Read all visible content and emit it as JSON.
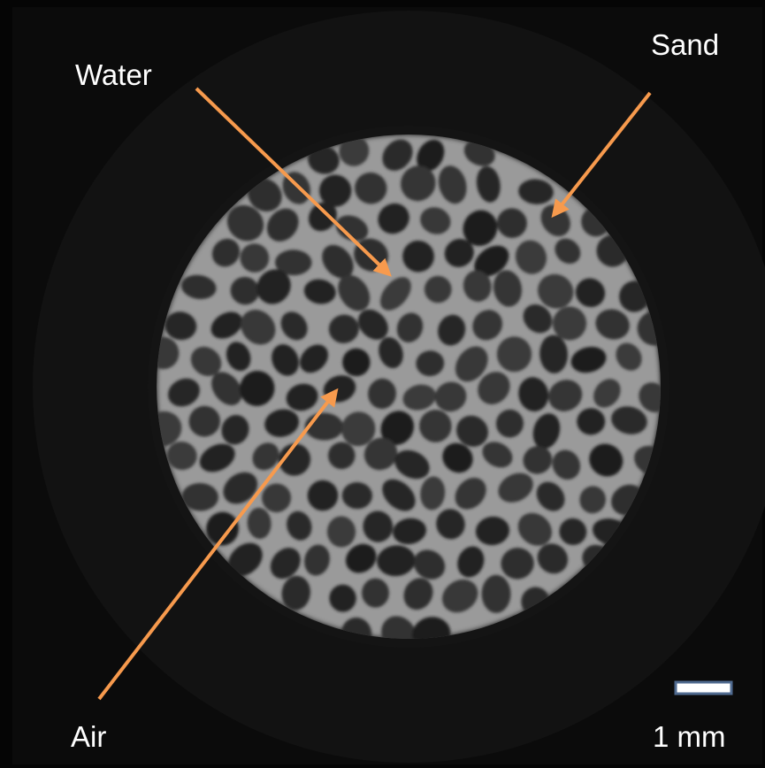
{
  "labels": {
    "water": "Water",
    "sand": "Sand",
    "air": "Air"
  },
  "scale_bar": "1 mm"
}
